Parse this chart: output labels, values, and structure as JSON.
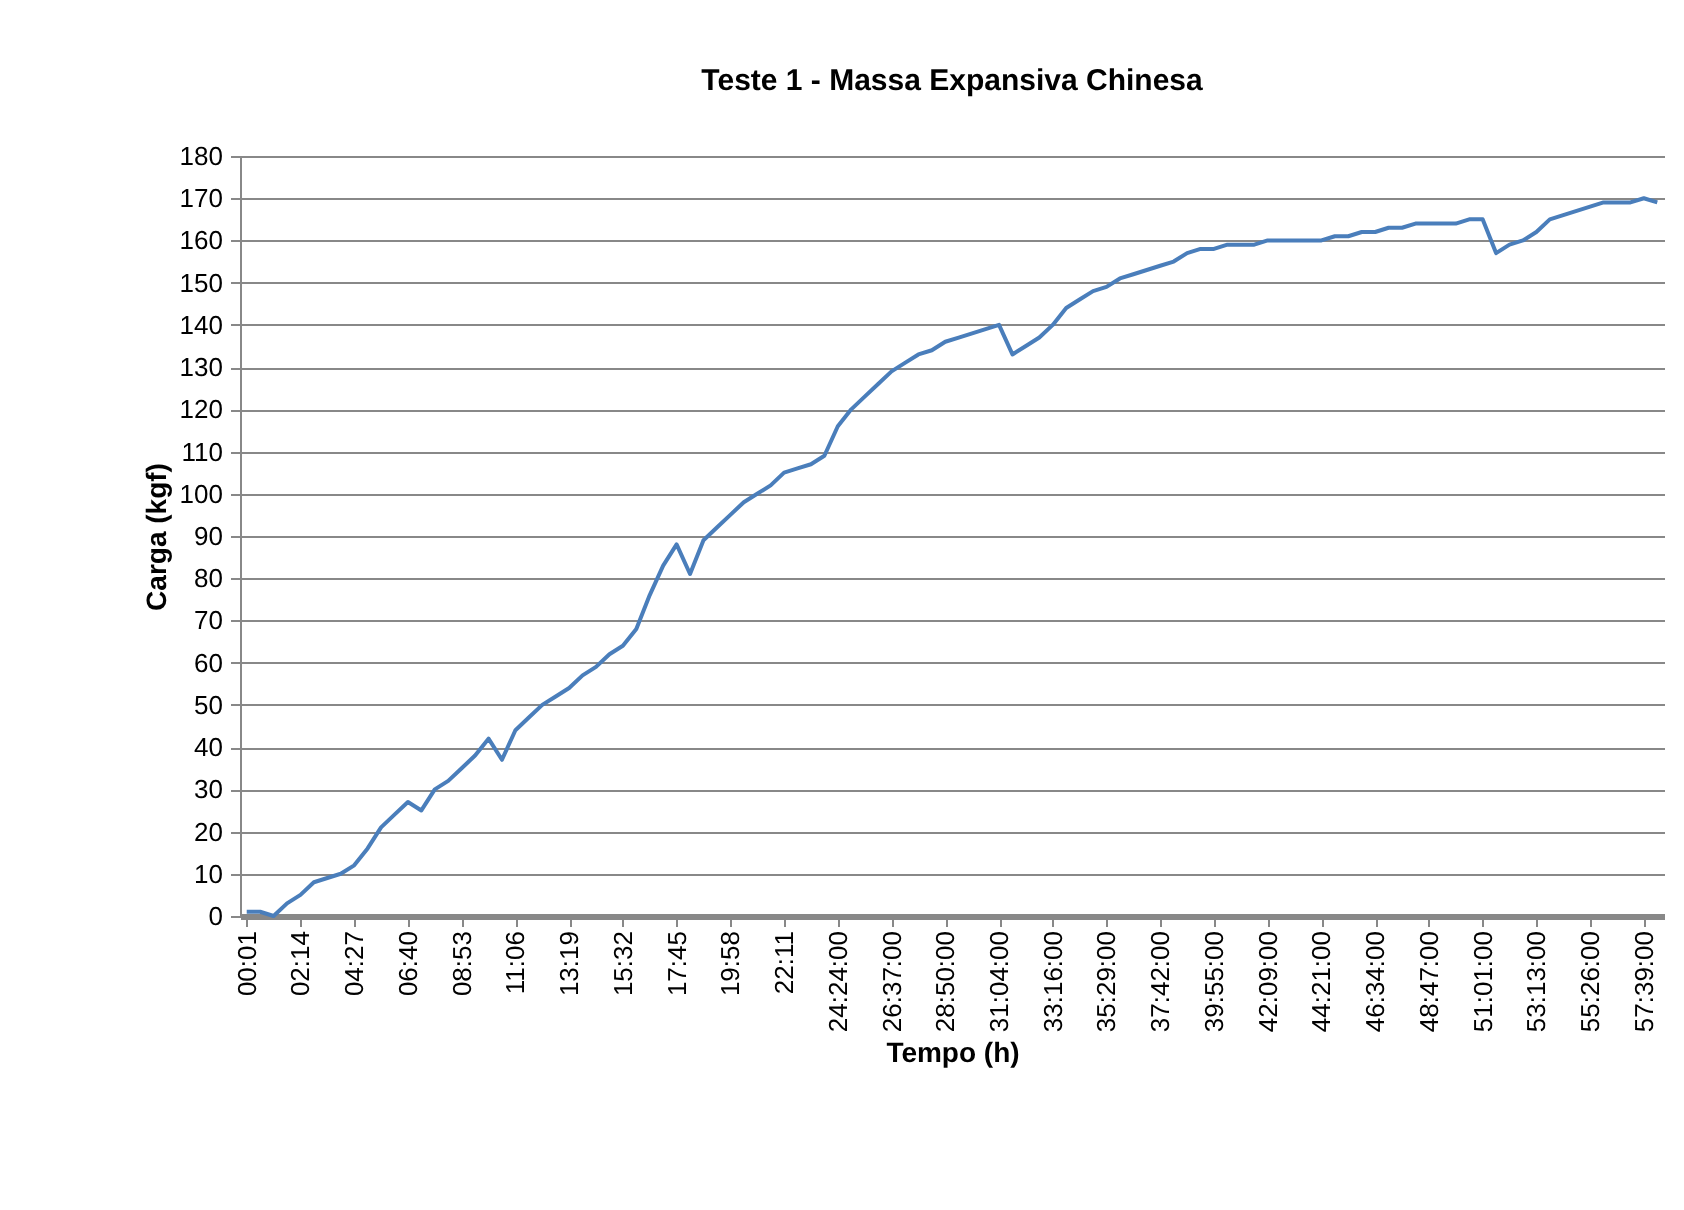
{
  "chart_data": {
    "type": "line",
    "title": "Teste 1 - Massa Expansiva Chinesa",
    "xlabel": "Tempo (h)",
    "ylabel": "Carga (kgf)",
    "categories": [
      "00:01",
      null,
      null,
      null,
      "02:14",
      null,
      null,
      null,
      "04:27",
      null,
      null,
      null,
      "06:40",
      null,
      null,
      null,
      "08:53",
      null,
      null,
      null,
      "11:06",
      null,
      null,
      null,
      "13:19",
      null,
      null,
      null,
      "15:32",
      null,
      null,
      null,
      "17:45",
      null,
      null,
      null,
      "19:58",
      null,
      null,
      null,
      "22:11",
      null,
      null,
      null,
      "24:24:00",
      null,
      null,
      null,
      "26:37:00",
      null,
      null,
      null,
      "28:50:00",
      null,
      null,
      null,
      "31:04:00",
      null,
      null,
      null,
      "33:16:00",
      null,
      null,
      null,
      "35:29:00",
      null,
      null,
      null,
      "37:42:00",
      null,
      null,
      null,
      "39:55:00",
      null,
      null,
      null,
      "42:09:00",
      null,
      null,
      null,
      "44:21:00",
      null,
      null,
      null,
      "46:34:00",
      null,
      null,
      null,
      "48:47:00",
      null,
      null,
      null,
      "51:01:00",
      null,
      null,
      null,
      "53:13:00",
      null,
      null,
      null,
      "55:26:00",
      null,
      null,
      null,
      "57:39:00",
      null
    ],
    "series": [
      {
        "color": "#4a7ebb",
        "values": [
          1,
          1,
          0,
          3,
          5,
          8,
          9,
          10,
          12,
          16,
          21,
          24,
          27,
          25,
          30,
          32,
          35,
          38,
          42,
          37,
          44,
          47,
          50,
          52,
          54,
          57,
          59,
          62,
          64,
          68,
          76,
          83,
          88,
          81,
          89,
          92,
          95,
          98,
          100,
          102,
          105,
          106,
          107,
          109,
          116,
          120,
          123,
          126,
          129,
          131,
          133,
          134,
          136,
          137,
          138,
          139,
          140,
          133,
          135,
          137,
          140,
          144,
          146,
          148,
          149,
          151,
          152,
          153,
          154,
          155,
          157,
          158,
          158,
          159,
          159,
          159,
          160,
          160,
          160,
          160,
          160,
          161,
          161,
          162,
          162,
          163,
          163,
          164,
          164,
          164,
          164,
          165,
          165,
          157,
          159,
          160,
          162,
          165,
          166,
          167,
          168,
          169,
          169,
          169,
          170,
          169
        ]
      }
    ],
    "ylim": [
      0,
      180
    ],
    "yticks": [
      0,
      10,
      20,
      30,
      40,
      50,
      60,
      70,
      80,
      90,
      100,
      110,
      120,
      130,
      140,
      150,
      160,
      170,
      180
    ],
    "grid": "y"
  }
}
